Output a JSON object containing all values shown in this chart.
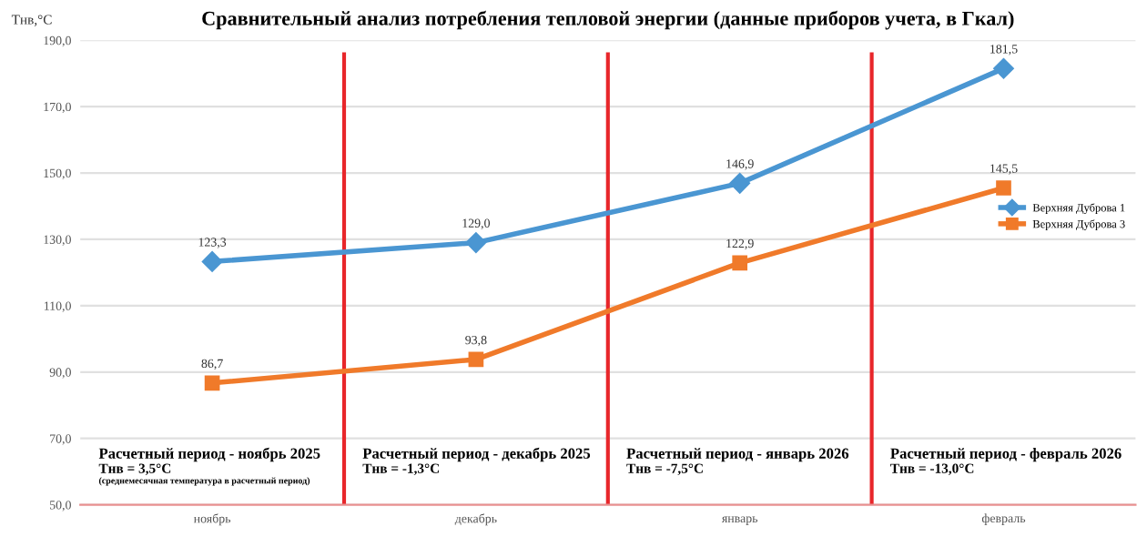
{
  "chart_data": {
    "type": "line",
    "title": "Сравнительный анализ потребления тепловой энергии (данные приборов учета, в Гкал)",
    "ylabel": "Тнв,°С",
    "categories": [
      "ноябрь",
      "декабрь",
      "январь",
      "февраль"
    ],
    "series": [
      {
        "name": "Верхняя Дуброва 1",
        "color": "#4a96d2",
        "marker": "diamond",
        "values": [
          123.3,
          129.0,
          146.9,
          181.5
        ],
        "value_labels": [
          "123,3",
          "129,0",
          "146,9",
          "181,5"
        ]
      },
      {
        "name": "Верхняя Дуброва 3",
        "color": "#f07a2a",
        "marker": "square",
        "values": [
          86.7,
          93.8,
          122.9,
          145.5
        ],
        "value_labels": [
          "86,7",
          "93,8",
          "122,9",
          "145,5"
        ]
      }
    ],
    "ylim": [
      50,
      190
    ],
    "yticks": [
      {
        "value": 50,
        "label": "50,0"
      },
      {
        "value": 70,
        "label": "70,0"
      },
      {
        "value": 90,
        "label": "90,0"
      },
      {
        "value": 110,
        "label": "110,0"
      },
      {
        "value": 130,
        "label": "130,0"
      },
      {
        "value": 150,
        "label": "150,0"
      },
      {
        "value": 170,
        "label": "170,0"
      },
      {
        "value": 190,
        "label": "190,0"
      }
    ],
    "grid": "y",
    "legend": "right",
    "line_style": "solid",
    "annotations": [
      "Расчетный период - ноябрь 2025\nТнв = 3,5°С (среднемесячная температура в расчетный период)",
      "Расчетный период - декабрь 2025\nТнв = -1,3°С",
      "Расчетный период - январь 2026\nТнв = -7,5°С",
      "Расчетный период - февраль 2026\nТнв = -13,0°С"
    ]
  }
}
